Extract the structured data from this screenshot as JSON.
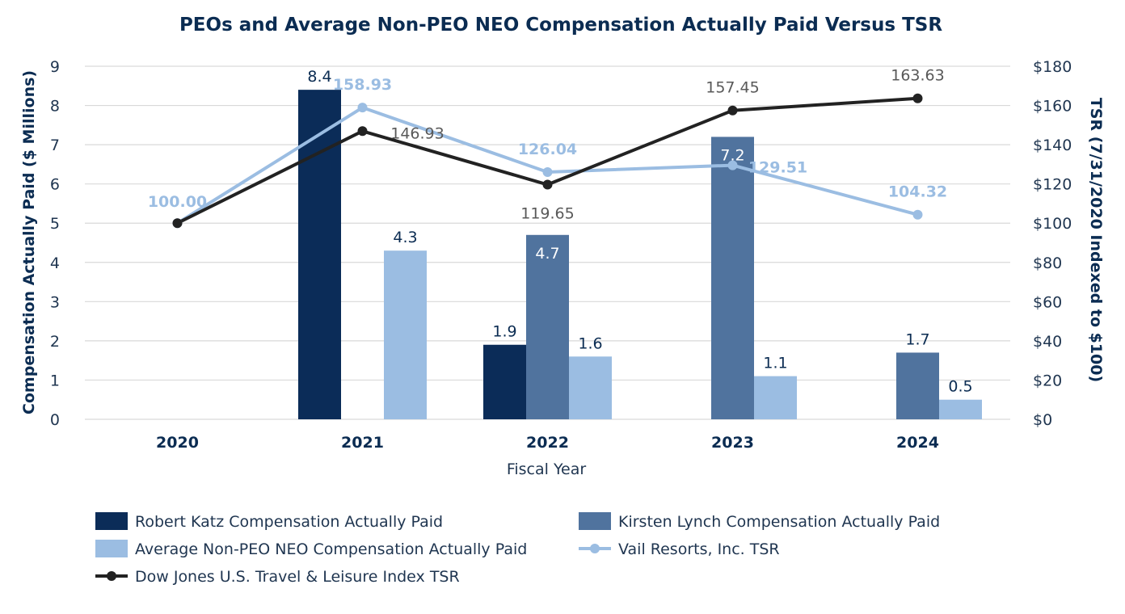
{
  "chart_data": {
    "type": "bar",
    "title": "PEOs and Average Non-PEO NEO Compensation Actually Paid Versus TSR",
    "xlabel": "Fiscal Year",
    "ylabel": "Compensation Actually Paid ($ Millions)",
    "y2label": "TSR (7/31/2020 Indexed to $100)",
    "categories": [
      "2020",
      "2021",
      "2022",
      "2023",
      "2024"
    ],
    "ylim": [
      0,
      9
    ],
    "yticks": [
      "0",
      "1",
      "2",
      "3",
      "4",
      "5",
      "6",
      "7",
      "8",
      "9"
    ],
    "y2lim": [
      0,
      180
    ],
    "y2ticks": [
      "$0",
      "$20",
      "$40",
      "$60",
      "$80",
      "$100",
      "$120",
      "$140",
      "$160",
      "$180"
    ],
    "grid": true,
    "legend_position": "bottom",
    "bar_series": [
      {
        "name": "Robert Katz Compensation Actually Paid",
        "color": "#0b2c58",
        "values": [
          null,
          8.4,
          1.9,
          null,
          null
        ],
        "labels": [
          "",
          "8.4",
          "1.9",
          "",
          ""
        ],
        "label_color": "#0b2c52"
      },
      {
        "name": "Kirsten Lynch Compensation Actually Paid",
        "color": "#50739e",
        "values": [
          null,
          null,
          4.7,
          7.2,
          1.7
        ],
        "labels": [
          "",
          "",
          "4.7",
          "7.2",
          "1.7"
        ],
        "label_color": "#0b2c52"
      },
      {
        "name": "Average Non-PEO NEO Compensation Actually Paid",
        "color": "#9bbde2",
        "values": [
          null,
          4.3,
          1.6,
          1.1,
          0.5
        ],
        "labels": [
          "",
          "4.3",
          "1.6",
          "1.1",
          "0.5"
        ],
        "label_color": "#0b2c52"
      }
    ],
    "line_series": [
      {
        "name": "Vail Resorts, Inc. TSR",
        "color": "#9bbde2",
        "values": [
          100.0,
          158.93,
          126.04,
          129.51,
          104.32
        ],
        "labels": [
          "100.00",
          "158.93",
          "126.04",
          "129.51",
          "104.32"
        ]
      },
      {
        "name": "Dow Jones U.S. Travel & Leisure Index TSR",
        "color": "#222222",
        "values": [
          100.0,
          146.93,
          119.65,
          157.45,
          163.63
        ],
        "labels": [
          "",
          "146.93",
          "119.65",
          "157.45",
          "163.63"
        ]
      }
    ]
  }
}
